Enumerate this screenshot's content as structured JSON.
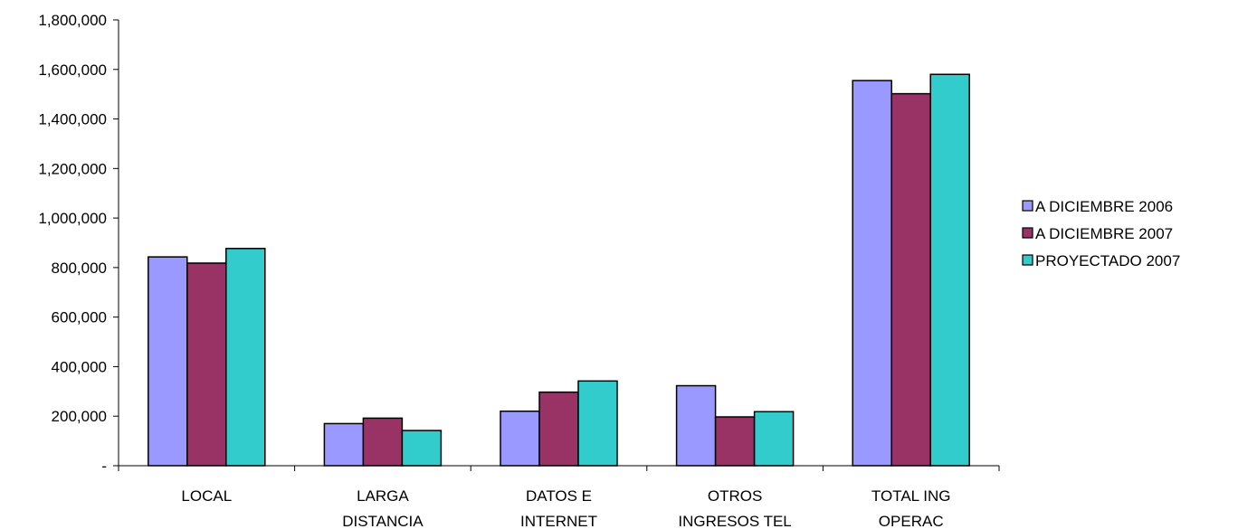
{
  "chart_data": {
    "type": "bar",
    "title": "",
    "xlabel": "",
    "ylabel": "",
    "ylim": [
      0,
      1800000
    ],
    "yticks": [
      0,
      200000,
      400000,
      600000,
      800000,
      1000000,
      1200000,
      1400000,
      1600000,
      1800000
    ],
    "ytick_labels": [
      "-",
      "200,000",
      "400,000",
      "600,000",
      "800,000",
      "1,000,000",
      "1,200,000",
      "1,400,000",
      "1,600,000",
      "1,800,000"
    ],
    "categories": [
      [
        "LOCAL"
      ],
      [
        "LARGA",
        "DISTANCIA"
      ],
      [
        "DATOS E",
        "INTERNET"
      ],
      [
        "OTROS",
        "INGRESOS TEL"
      ],
      [
        "TOTAL ING",
        "OPERAC"
      ]
    ],
    "series": [
      {
        "name": "A DICIEMBRE 2006",
        "color": "#9999ff",
        "values": [
          843000,
          170000,
          220000,
          323000,
          1555000
        ]
      },
      {
        "name": "A DICIEMBRE 2007",
        "color": "#993366",
        "values": [
          818000,
          192000,
          297000,
          197000,
          1502000
        ]
      },
      {
        "name": "PROYECTADO 2007",
        "color": "#33cccc",
        "values": [
          877000,
          142000,
          342000,
          218000,
          1580000
        ]
      }
    ],
    "grid": false,
    "legend_position": "right"
  }
}
